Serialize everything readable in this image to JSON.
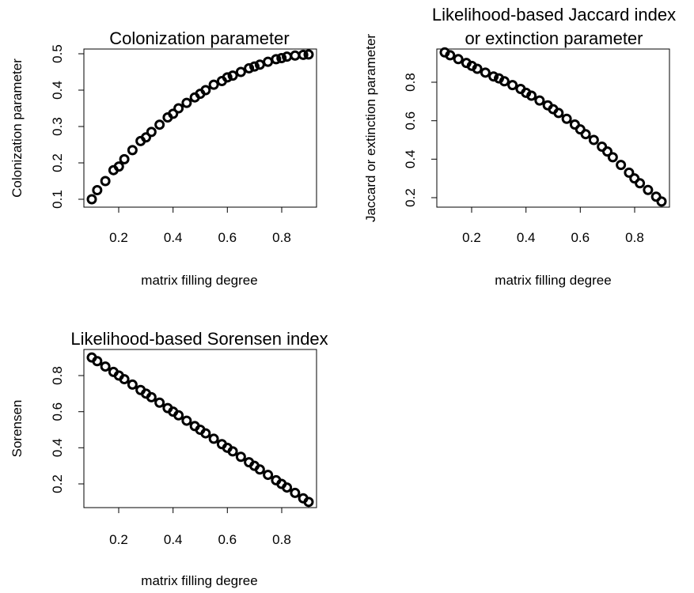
{
  "chart_data": [
    {
      "id": "colonization",
      "type": "scatter",
      "title": [
        "Colonization parameter"
      ],
      "xlabel": "matrix filling degree",
      "ylabel": "Colonization parameter",
      "xlim": [
        0.1,
        0.9
      ],
      "ylim": [
        0.09,
        0.5
      ],
      "xticks": [
        "0.2",
        "0.4",
        "0.6",
        "0.8"
      ],
      "yticks": [
        "0.1",
        "0.2",
        "0.3",
        "0.4",
        "0.5"
      ],
      "grid": false,
      "marker": "open-circle",
      "points": [
        [
          0.1,
          0.1
        ],
        [
          0.12,
          0.125
        ],
        [
          0.15,
          0.15
        ],
        [
          0.18,
          0.18
        ],
        [
          0.2,
          0.19
        ],
        [
          0.22,
          0.21
        ],
        [
          0.25,
          0.235
        ],
        [
          0.28,
          0.26
        ],
        [
          0.3,
          0.27
        ],
        [
          0.32,
          0.285
        ],
        [
          0.35,
          0.305
        ],
        [
          0.38,
          0.325
        ],
        [
          0.4,
          0.335
        ],
        [
          0.42,
          0.35
        ],
        [
          0.45,
          0.365
        ],
        [
          0.48,
          0.38
        ],
        [
          0.5,
          0.39
        ],
        [
          0.52,
          0.4
        ],
        [
          0.55,
          0.415
        ],
        [
          0.58,
          0.425
        ],
        [
          0.6,
          0.435
        ],
        [
          0.62,
          0.44
        ],
        [
          0.65,
          0.45
        ],
        [
          0.68,
          0.46
        ],
        [
          0.7,
          0.465
        ],
        [
          0.72,
          0.47
        ],
        [
          0.75,
          0.478
        ],
        [
          0.78,
          0.485
        ],
        [
          0.8,
          0.488
        ],
        [
          0.82,
          0.492
        ],
        [
          0.85,
          0.495
        ],
        [
          0.88,
          0.497
        ],
        [
          0.9,
          0.498
        ]
      ]
    },
    {
      "id": "jaccard",
      "type": "scatter",
      "title": [
        "Likelihood-based Jaccard index",
        "or extinction parameter"
      ],
      "xlabel": "matrix filling degree",
      "ylabel": "Jaccard or extinction parameter",
      "xlim": [
        0.1,
        0.9
      ],
      "ylim": [
        0.18,
        0.96
      ],
      "xticks": [
        "0.2",
        "0.4",
        "0.6",
        "0.8"
      ],
      "yticks": [
        "0.2",
        "0.4",
        "0.6",
        "0.8"
      ],
      "grid": false,
      "marker": "open-circle",
      "points": [
        [
          0.1,
          0.955
        ],
        [
          0.12,
          0.94
        ],
        [
          0.15,
          0.92
        ],
        [
          0.18,
          0.9
        ],
        [
          0.2,
          0.885
        ],
        [
          0.22,
          0.87
        ],
        [
          0.25,
          0.85
        ],
        [
          0.28,
          0.83
        ],
        [
          0.3,
          0.82
        ],
        [
          0.32,
          0.805
        ],
        [
          0.35,
          0.785
        ],
        [
          0.38,
          0.765
        ],
        [
          0.4,
          0.745
        ],
        [
          0.42,
          0.73
        ],
        [
          0.45,
          0.705
        ],
        [
          0.48,
          0.68
        ],
        [
          0.5,
          0.66
        ],
        [
          0.52,
          0.64
        ],
        [
          0.55,
          0.61
        ],
        [
          0.58,
          0.58
        ],
        [
          0.6,
          0.555
        ],
        [
          0.62,
          0.53
        ],
        [
          0.65,
          0.5
        ],
        [
          0.68,
          0.465
        ],
        [
          0.7,
          0.44
        ],
        [
          0.72,
          0.41
        ],
        [
          0.75,
          0.37
        ],
        [
          0.78,
          0.33
        ],
        [
          0.8,
          0.3
        ],
        [
          0.82,
          0.275
        ],
        [
          0.85,
          0.24
        ],
        [
          0.88,
          0.205
        ],
        [
          0.9,
          0.18
        ]
      ]
    },
    {
      "id": "sorensen",
      "type": "scatter",
      "title": [
        "Likelihood-based Sorensen index"
      ],
      "xlabel": "matrix filling degree",
      "ylabel": "Sorensen",
      "xlim": [
        0.1,
        0.9
      ],
      "ylim": [
        0.1,
        0.9
      ],
      "xticks": [
        "0.2",
        "0.4",
        "0.6",
        "0.8"
      ],
      "yticks": [
        "0.2",
        "0.4",
        "0.6",
        "0.8"
      ],
      "grid": false,
      "marker": "open-circle",
      "points": [
        [
          0.1,
          0.9
        ],
        [
          0.12,
          0.88
        ],
        [
          0.15,
          0.85
        ],
        [
          0.18,
          0.82
        ],
        [
          0.2,
          0.8
        ],
        [
          0.22,
          0.78
        ],
        [
          0.25,
          0.75
        ],
        [
          0.28,
          0.72
        ],
        [
          0.3,
          0.7
        ],
        [
          0.32,
          0.68
        ],
        [
          0.35,
          0.65
        ],
        [
          0.38,
          0.62
        ],
        [
          0.4,
          0.6
        ],
        [
          0.42,
          0.58
        ],
        [
          0.45,
          0.55
        ],
        [
          0.48,
          0.52
        ],
        [
          0.5,
          0.5
        ],
        [
          0.52,
          0.48
        ],
        [
          0.55,
          0.45
        ],
        [
          0.58,
          0.42
        ],
        [
          0.6,
          0.4
        ],
        [
          0.62,
          0.38
        ],
        [
          0.65,
          0.35
        ],
        [
          0.68,
          0.32
        ],
        [
          0.7,
          0.3
        ],
        [
          0.72,
          0.28
        ],
        [
          0.75,
          0.25
        ],
        [
          0.78,
          0.22
        ],
        [
          0.8,
          0.2
        ],
        [
          0.82,
          0.18
        ],
        [
          0.85,
          0.15
        ],
        [
          0.88,
          0.12
        ],
        [
          0.9,
          0.1
        ]
      ]
    }
  ]
}
